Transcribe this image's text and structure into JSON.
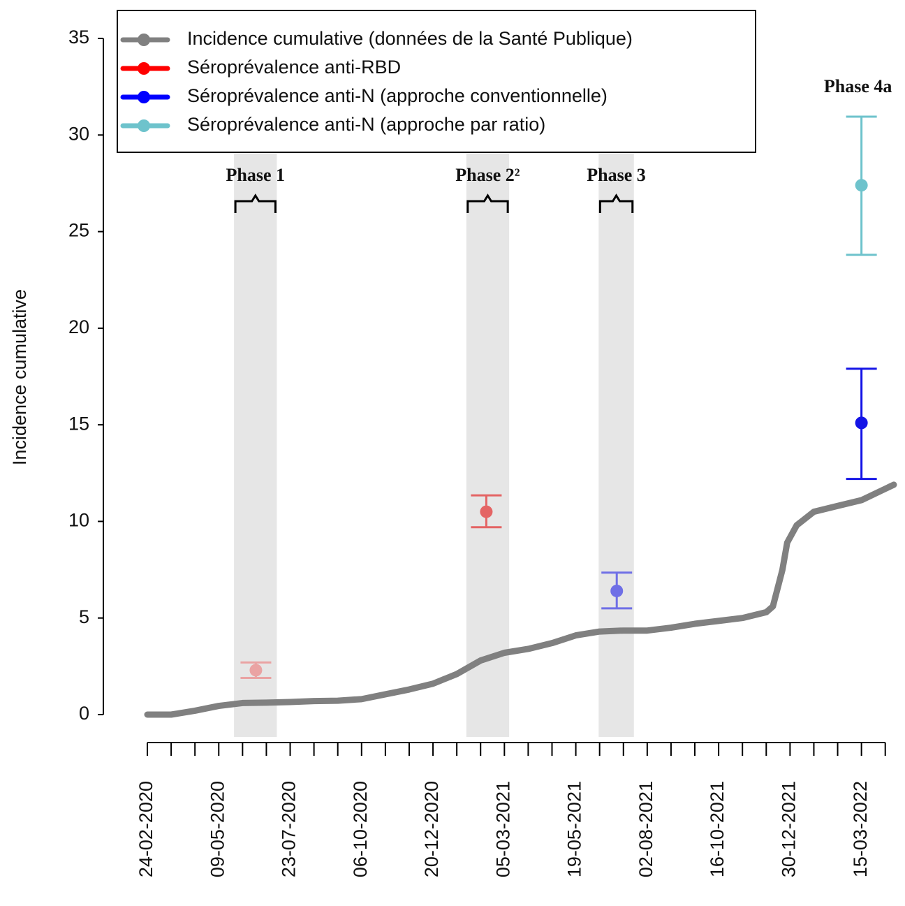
{
  "chart_data": {
    "type": "line",
    "y_label": "Incidence cumulative",
    "ylim": [
      0,
      35
    ],
    "yticks": [
      0,
      5,
      10,
      15,
      20,
      25,
      30,
      35
    ],
    "xlim": [
      "24-02-2020",
      "18-04-2022"
    ],
    "xticks": [
      "24-02-2020",
      "09-05-2020",
      "23-07-2020",
      "06-10-2020",
      "20-12-2020",
      "05-03-2021",
      "19-05-2021",
      "02-08-2021",
      "16-10-2021",
      "30-12-2021",
      "15-03-2022"
    ],
    "x_minor_ticks": [
      "20-03-2020",
      "14-04-2020",
      "03-06-2020",
      "28-06-2020",
      "17-08-2020",
      "11-09-2020",
      "31-10-2020",
      "25-11-2020",
      "14-01-2021",
      "08-02-2021",
      "30-03-2021",
      "24-04-2021",
      "13-06-2021",
      "08-07-2021",
      "27-08-2021",
      "21-09-2021",
      "10-11-2021",
      "05-12-2021",
      "24-01-2022",
      "18-02-2022",
      "09-04-2022"
    ],
    "legend": "top-left",
    "phases": [
      {
        "label": "Phase 1",
        "start": "25-05-2020",
        "end": "09-07-2020"
      },
      {
        "label": "Phase 2²",
        "start": "24-01-2021",
        "end": "10-03-2021"
      },
      {
        "label": "Phase 3",
        "start": "12-06-2021",
        "end": "19-07-2021"
      }
    ],
    "annotations": [
      {
        "text": "Phase 4a",
        "x": "15-03-2022"
      }
    ],
    "series": [
      {
        "name": "Incidence cumulative (données de la Santé Publique)",
        "color": "#808080",
        "x": [
          "24-02-2020",
          "20-03-2020",
          "14-04-2020",
          "09-05-2020",
          "03-06-2020",
          "28-06-2020",
          "23-07-2020",
          "17-08-2020",
          "11-09-2020",
          "06-10-2020",
          "31-10-2020",
          "25-11-2020",
          "20-12-2020",
          "14-01-2021",
          "08-02-2021",
          "05-03-2021",
          "30-03-2021",
          "24-04-2021",
          "19-05-2021",
          "13-06-2021",
          "08-07-2021",
          "02-08-2021",
          "27-08-2021",
          "21-09-2021",
          "16-10-2021",
          "10-11-2021",
          "05-12-2021",
          "12-12-2021",
          "22-12-2021",
          "27-12-2021",
          "06-01-2022",
          "24-01-2022",
          "18-02-2022",
          "15-03-2022",
          "18-04-2022"
        ],
        "values": [
          0,
          0,
          0.2,
          0.45,
          0.6,
          0.62,
          0.65,
          0.7,
          0.72,
          0.8,
          1.05,
          1.3,
          1.6,
          2.1,
          2.8,
          3.2,
          3.4,
          3.7,
          4.1,
          4.3,
          4.35,
          4.35,
          4.5,
          4.7,
          4.85,
          5.0,
          5.3,
          5.6,
          7.5,
          8.9,
          9.8,
          10.5,
          10.8,
          11.1,
          11.9
        ]
      },
      {
        "name": "Séroprévalence anti-RBD",
        "color": "#ff0000",
        "type": "errorbar",
        "x": [
          "17-06-2020",
          "14-02-2021"
        ],
        "values": [
          2.3,
          10.5
        ],
        "lower": [
          1.9,
          9.7
        ],
        "upper": [
          2.7,
          11.35
        ],
        "point_colors": [
          "#eaa3a3",
          "#e46464"
        ]
      },
      {
        "name": "Séroprévalence anti-N (approche conventionnelle)",
        "color": "#0000ff",
        "type": "errorbar",
        "x": [
          "01-07-2021",
          "15-03-2022"
        ],
        "values": [
          6.4,
          15.1
        ],
        "lower": [
          5.5,
          12.2
        ],
        "upper": [
          7.35,
          17.9
        ],
        "point_colors": [
          "#6f6fe6",
          "#1414e6"
        ]
      },
      {
        "name": "Séroprévalence anti-N (approche par ratio)",
        "color": "#6ec3cc",
        "type": "errorbar",
        "x": [
          "15-03-2022"
        ],
        "values": [
          27.4
        ],
        "lower": [
          23.8
        ],
        "upper": [
          30.95
        ],
        "point_colors": [
          "#6ec3cc"
        ]
      }
    ]
  }
}
